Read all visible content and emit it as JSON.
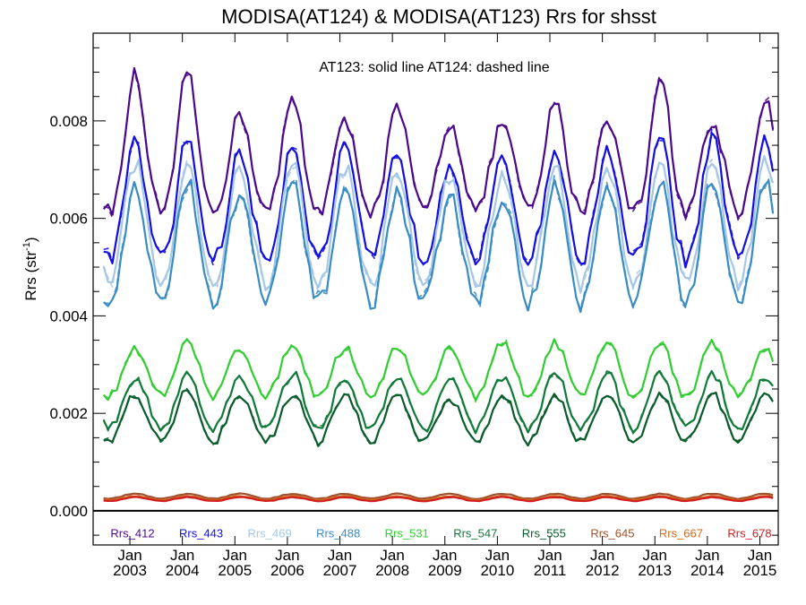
{
  "chart_data": {
    "type": "line",
    "title": "MODISA(AT124) & MODISA(AT123)  Rrs for shsst",
    "ylabel_base": "Rrs (str",
    "ylabel_sup": "-1",
    "ylabel_close": ")",
    "annotation": "AT123: solid line   AT124: dashed line",
    "xlim": [
      2002.3,
      2015.35
    ],
    "ylim": [
      -0.0007,
      0.0098
    ],
    "y_ticks": [
      {
        "value": 0.0,
        "label": "0.000"
      },
      {
        "value": 0.002,
        "label": "0.002"
      },
      {
        "value": 0.004,
        "label": "0.004"
      },
      {
        "value": 0.006,
        "label": "0.006"
      },
      {
        "value": 0.008,
        "label": "0.008"
      }
    ],
    "x_ticks": [
      {
        "value": 2003,
        "month": "Jan",
        "year": "2003"
      },
      {
        "value": 2004,
        "month": "Jan",
        "year": "2004"
      },
      {
        "value": 2005,
        "month": "Jan",
        "year": "2005"
      },
      {
        "value": 2006,
        "month": "Jan",
        "year": "2006"
      },
      {
        "value": 2007,
        "month": "Jan",
        "year": "2007"
      },
      {
        "value": 2008,
        "month": "Jan",
        "year": "2008"
      },
      {
        "value": 2009,
        "month": "Jan",
        "year": "2009"
      },
      {
        "value": 2010,
        "month": "Jan",
        "year": "2010"
      },
      {
        "value": 2011,
        "month": "Jan",
        "year": "2011"
      },
      {
        "value": 2012,
        "month": "Jan",
        "year": "2012"
      },
      {
        "value": 2013,
        "month": "Jan",
        "year": "2013"
      },
      {
        "value": 2014,
        "month": "Jan",
        "year": "2014"
      },
      {
        "value": 2015,
        "month": "Jan",
        "year": "2015"
      }
    ],
    "zero_line": true,
    "grid": false,
    "legend_position": "bottom-inside",
    "x_start": 2002.5,
    "x_end": 2015.33,
    "seasonal_peak_year_fraction": 0.1,
    "series": [
      {
        "name": "Rrs_412",
        "color": "#4b0a8c",
        "base": 0.007,
        "amplitude": 0.00085,
        "yearly_peak_offsets": [
          0.0011,
          0.0012,
          0.0003,
          0.0006,
          0.0001,
          0.0004,
          0.0001,
          0.0001,
          0.0005,
          0.0002,
          0.0011,
          0.0001,
          0.0006
        ]
      },
      {
        "name": "Rrs_443",
        "color": "#1410e0",
        "base": 0.0061,
        "amplitude": 0.00095,
        "yearly_peak_offsets": [
          0.0005,
          0.0006,
          0.0003,
          0.0005,
          0.0004,
          0.0003,
          0.0001,
          0.0001,
          0.0003,
          0.0004,
          0.0006,
          0.0006,
          0.0006
        ]
      },
      {
        "name": "Rrs_469",
        "color": "#a5c8e6",
        "base": 0.0057,
        "amplitude": 0.00105,
        "yearly_peak_offsets": [
          0.0004,
          0.0005,
          0.0003,
          0.0004,
          0.0003,
          0.0002,
          0.0001,
          0.0001,
          0.0003,
          0.0003,
          0.0005,
          0.0005,
          0.0005
        ]
      },
      {
        "name": "Rrs_488",
        "color": "#3a8cc4",
        "base": 0.0053,
        "amplitude": 0.00105,
        "yearly_peak_offsets": [
          0.0003,
          0.0004,
          0.0002,
          0.0004,
          0.0003,
          0.0002,
          0.0001,
          0.0,
          0.0003,
          0.0003,
          0.0004,
          0.0004,
          0.0004
        ]
      },
      {
        "name": "Rrs_531",
        "color": "#32cd32",
        "base": 0.00285,
        "amplitude": 0.0005,
        "yearly_peak_offsets": [
          0.0,
          0.0001,
          0.0,
          0.0001,
          0.0,
          0.0,
          0.0,
          0.0001,
          0.0001,
          0.0001,
          0.0001,
          0.0001,
          0.0
        ]
      },
      {
        "name": "Rrs_547",
        "color": "#117a3a",
        "base": 0.0022,
        "amplitude": 0.00052,
        "yearly_peak_offsets": [
          0.0,
          0.0001,
          0.0,
          0.0001,
          0.0,
          0.0,
          0.0,
          0.0,
          0.0001,
          0.0001,
          0.0001,
          0.0001,
          0.0
        ]
      },
      {
        "name": "Rrs_555",
        "color": "#0a5c2c",
        "base": 0.0019,
        "amplitude": 0.00048,
        "yearly_peak_offsets": [
          0.0,
          0.0001,
          0.0,
          0.0,
          0.0,
          0.0,
          -0.0001,
          0.0,
          0.0,
          0.0,
          0.0,
          0.0,
          0.0
        ]
      },
      {
        "name": "Rrs_645",
        "color": "#a0522d",
        "base": 0.0003,
        "amplitude": 5e-05,
        "yearly_peak_offsets": [
          0,
          0,
          0,
          0,
          0,
          0,
          0,
          0,
          0,
          0,
          0,
          0,
          0
        ]
      },
      {
        "name": "Rrs_667",
        "color": "#d2691e",
        "base": 0.00026,
        "amplitude": 4e-05,
        "yearly_peak_offsets": [
          0,
          0,
          0,
          0,
          0,
          0,
          0,
          0,
          0,
          0,
          0,
          0,
          0
        ]
      },
      {
        "name": "Rrs_678",
        "color": "#d21e1e",
        "base": 0.00024,
        "amplitude": 4e-05,
        "yearly_peak_offsets": [
          0,
          0,
          0,
          0,
          0,
          0,
          0,
          0,
          0,
          0,
          0,
          0,
          0
        ]
      }
    ]
  }
}
